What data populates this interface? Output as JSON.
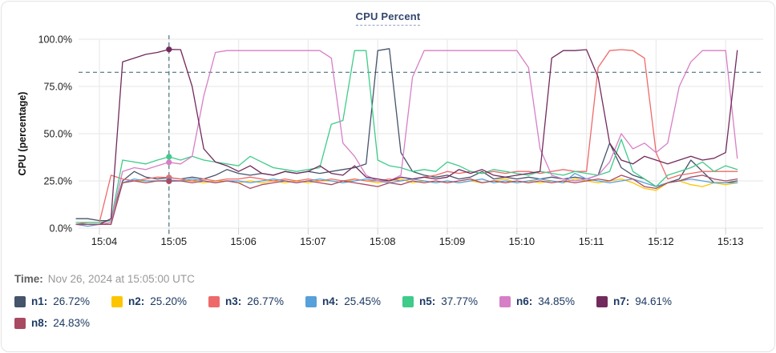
{
  "title": "CPU Percent",
  "time_info": {
    "label": "Time:",
    "value": "Nov 26, 2024 at 15:05:00 UTC"
  },
  "legend": {
    "position": "bottom",
    "items": [
      {
        "label": "n1:",
        "value": "26.72%",
        "color": "#45536b"
      },
      {
        "label": "n2:",
        "value": "25.20%",
        "color": "#fdc500"
      },
      {
        "label": "n3:",
        "value": "26.77%",
        "color": "#ee6a6a"
      },
      {
        "label": "n4:",
        "value": "25.45%",
        "color": "#57a0d9"
      },
      {
        "label": "n5:",
        "value": "37.77%",
        "color": "#3fcb8a"
      },
      {
        "label": "n6:",
        "value": "34.85%",
        "color": "#d77fc6"
      },
      {
        "label": "n7:",
        "value": "94.61%",
        "color": "#722a5c"
      },
      {
        "label": "n8:",
        "value": "24.83%",
        "color": "#a94a62"
      }
    ]
  },
  "chart_data": {
    "type": "line",
    "title": "CPU Percent",
    "xlabel": "",
    "ylabel": "CPU (percentage)",
    "ylim": [
      0,
      100
    ],
    "grid": true,
    "y_ticks": [
      {
        "value": 0,
        "label": "0.0%"
      },
      {
        "value": 25,
        "label": "25.0%"
      },
      {
        "value": 50,
        "label": "50.0%"
      },
      {
        "value": 75,
        "label": "75.0%"
      },
      {
        "value": 100,
        "label": "100.0%"
      }
    ],
    "x_ticks": [
      {
        "label": "15:04",
        "t": 20
      },
      {
        "label": "15:05",
        "t": 80
      },
      {
        "label": "15:06",
        "t": 140
      },
      {
        "label": "15:07",
        "t": 200
      },
      {
        "label": "15:08",
        "t": 260
      },
      {
        "label": "15:09",
        "t": 320
      },
      {
        "label": "15:10",
        "t": 380
      },
      {
        "label": "15:11",
        "t": 440
      },
      {
        "label": "15:12",
        "t": 500
      },
      {
        "label": "15:13",
        "t": 560
      }
    ],
    "time_start": "15:03:40",
    "time_step_seconds": 10,
    "threshold_percent": 82.5,
    "crosshair": {
      "t": 80,
      "time": "15:05:00"
    },
    "series": [
      {
        "name": "n1",
        "color": "#45536b",
        "values": [
          5,
          5,
          4,
          4,
          25,
          30,
          27,
          26,
          26.72,
          26,
          27,
          26,
          28,
          31,
          29,
          28,
          29,
          28,
          30,
          29,
          30,
          29,
          30,
          31,
          32,
          34,
          94,
          95,
          40,
          30,
          28,
          27,
          28,
          26,
          27,
          30,
          26,
          27,
          26,
          27,
          26,
          27,
          26,
          27,
          26,
          28,
          45,
          32,
          28,
          26,
          22,
          24,
          26,
          36,
          30,
          24,
          24,
          25
        ]
      },
      {
        "name": "n2",
        "color": "#fdc500",
        "values": [
          2,
          2,
          2,
          3,
          24,
          25,
          25,
          25,
          25.2,
          25,
          25,
          24,
          25,
          25,
          24,
          25,
          24,
          25,
          24,
          25,
          24,
          25,
          25,
          24,
          26,
          25,
          24,
          25,
          26,
          24,
          25,
          24,
          25,
          24,
          25,
          24,
          25,
          26,
          24,
          25,
          24,
          25,
          24,
          26,
          25,
          24,
          25,
          26,
          24,
          21,
          20,
          24,
          25,
          23,
          22,
          24,
          23,
          24
        ]
      },
      {
        "name": "n3",
        "color": "#ee6a6a",
        "values": [
          2,
          3,
          3,
          28,
          26,
          25,
          26,
          27,
          26.77,
          26,
          25,
          26,
          25,
          26,
          26,
          27,
          26,
          25,
          26,
          25,
          26,
          25,
          26,
          25,
          26,
          25,
          25,
          26,
          25,
          26,
          27,
          28,
          30,
          29,
          30,
          29,
          30,
          29,
          30,
          30,
          29,
          30,
          31,
          30,
          30,
          85,
          94,
          94.5,
          94,
          90,
          40,
          26,
          28,
          29,
          30,
          30,
          30,
          30
        ]
      },
      {
        "name": "n4",
        "color": "#57a0d9",
        "values": [
          2,
          1,
          2,
          2,
          24,
          26,
          25,
          25,
          25.45,
          25,
          26,
          25,
          24,
          25,
          25,
          24,
          25,
          26,
          25,
          24,
          25,
          26,
          25,
          24,
          25,
          26,
          25,
          24,
          25,
          26,
          25,
          24,
          25,
          24,
          25,
          26,
          24,
          25,
          24,
          25,
          26,
          25,
          24,
          29,
          26,
          25,
          24,
          25,
          26,
          24,
          22,
          24,
          25,
          26,
          25,
          24,
          24,
          24
        ]
      },
      {
        "name": "n5",
        "color": "#3fcb8a",
        "values": [
          3,
          3,
          3,
          4,
          36,
          35,
          34,
          36,
          37.77,
          36,
          38,
          36,
          35,
          34,
          33,
          38,
          35,
          32,
          31,
          30,
          31,
          32,
          55,
          57,
          94,
          94,
          36,
          33,
          32,
          30,
          31,
          30,
          35,
          33,
          30,
          29,
          31,
          30,
          29,
          28,
          30,
          29,
          28,
          30,
          29,
          28,
          30,
          47,
          30,
          26,
          22,
          28,
          30,
          32,
          35,
          30,
          33,
          31
        ]
      },
      {
        "name": "n6",
        "color": "#d77fc6",
        "values": [
          2,
          2,
          2,
          3,
          30,
          32,
          31,
          33,
          34.85,
          34,
          38,
          70,
          93,
          94,
          94,
          94,
          94,
          94,
          94,
          94,
          94,
          94,
          90,
          45,
          38,
          28,
          25,
          25,
          28,
          80,
          94,
          94,
          94,
          94,
          94,
          94,
          94,
          94,
          94,
          85,
          42,
          28,
          26,
          25,
          26,
          28,
          35,
          50,
          42,
          45,
          40,
          45,
          75,
          88,
          94,
          94,
          94,
          37
        ]
      },
      {
        "name": "n7",
        "color": "#722a5c",
        "values": [
          2,
          2,
          2,
          5,
          88,
          90,
          92,
          93,
          94.61,
          94.5,
          75,
          42,
          35,
          33,
          30,
          33,
          29,
          28,
          30,
          29,
          30,
          33,
          29,
          28,
          33,
          27,
          26,
          25,
          27,
          26,
          27,
          26,
          27,
          31,
          29,
          31,
          28,
          27,
          28,
          29,
          30,
          90,
          94,
          94,
          94.5,
          80,
          45,
          36,
          34,
          38,
          36,
          34,
          36,
          38,
          36,
          37,
          40,
          94
        ]
      },
      {
        "name": "n8",
        "color": "#a94a62",
        "values": [
          2,
          2,
          2,
          2,
          24,
          25,
          24,
          25,
          24.83,
          25,
          24,
          25,
          24,
          25,
          24,
          21,
          23,
          24,
          25,
          24,
          25,
          24,
          23,
          25,
          24,
          23,
          22,
          24,
          23,
          25,
          24,
          25,
          24,
          25,
          26,
          24,
          25,
          24,
          25,
          24,
          25,
          24,
          25,
          24,
          25,
          26,
          25,
          28,
          26,
          22,
          21,
          24,
          25,
          27,
          28,
          26,
          25,
          26
        ]
      }
    ]
  },
  "colors": {
    "grid": "#ebebeb",
    "dashed_guides": "#4a7282",
    "title_text": "#33466e",
    "legend_text": "#1d3a63",
    "tick_text": "#1c1c1c"
  }
}
